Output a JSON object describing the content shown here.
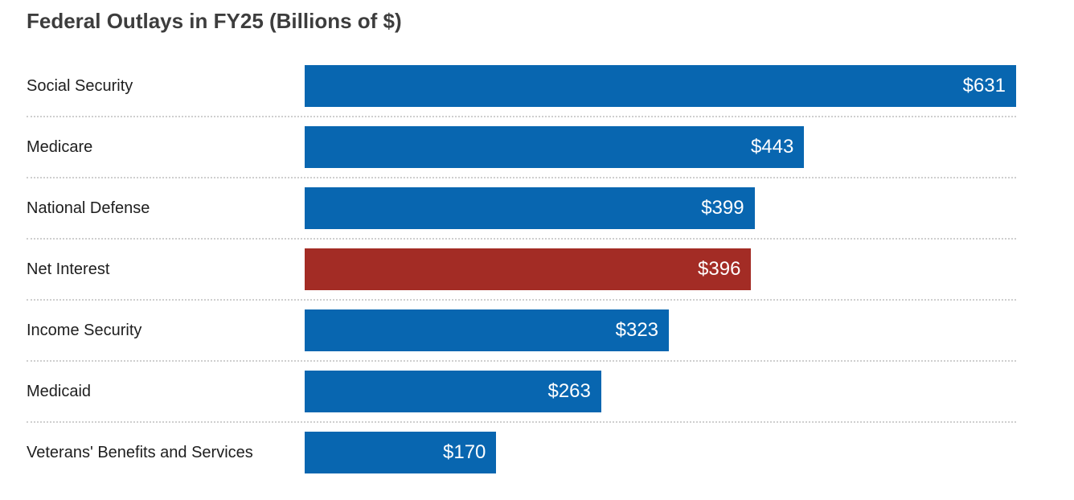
{
  "title": "Federal Outlays in FY25 (Billions of $)",
  "colors": {
    "background": "#ffffff",
    "default_bar": "#0866b0",
    "highlight_bar": "#a32c25",
    "title_text": "#3d3d3d",
    "label_text": "#1e1e1e",
    "value_text": "#ffffff",
    "separator": "#cfcfcf"
  },
  "chart_data": {
    "type": "bar",
    "orientation": "horizontal",
    "title": "Federal Outlays in FY25 (Billions of $)",
    "unit": "Billions of $",
    "xlim": [
      0,
      631
    ],
    "grid": false,
    "legend": false,
    "value_labels_position": "inside-end",
    "highlighted_category": "Net Interest",
    "categories": [
      "Social Security",
      "Medicare",
      "National Defense",
      "Net Interest",
      "Income Security",
      "Medicaid",
      "Veterans' Benefits and Services"
    ],
    "values": [
      631,
      443,
      399,
      396,
      323,
      263,
      170
    ],
    "value_labels": [
      "$631",
      "$443",
      "$399",
      "$396",
      "$323",
      "$263",
      "$170"
    ],
    "bar_colors": [
      "#0866b0",
      "#0866b0",
      "#0866b0",
      "#a32c25",
      "#0866b0",
      "#0866b0",
      "#0866b0"
    ]
  }
}
